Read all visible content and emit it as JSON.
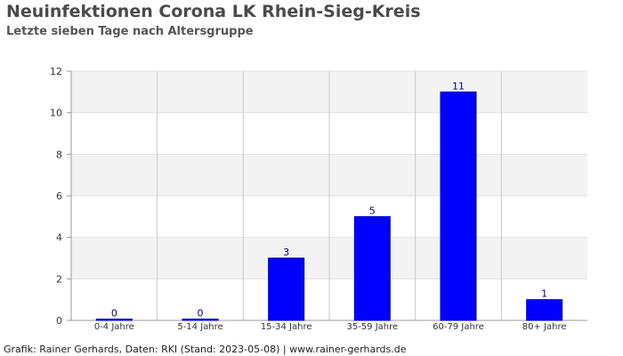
{
  "title": "Neuinfektionen Corona LK Rhein-Sieg-Kreis",
  "subtitle": "Letzte sieben Tage nach Altersgruppe",
  "footer": "Grafik: Rainer Gerhards, Daten: RKI (Stand: 2023-05-08) | www.rainer-gerhards.de",
  "chart_data": {
    "type": "bar",
    "categories": [
      "0-4 Jahre",
      "5-14 Jahre",
      "15-34 Jahre",
      "35-59 Jahre",
      "60-79 Jahre",
      "80+ Jahre"
    ],
    "values": [
      0,
      0,
      3,
      5,
      11,
      1
    ],
    "ylim": [
      0,
      12
    ],
    "yticks": [
      0,
      2,
      4,
      6,
      8,
      10,
      12
    ],
    "grid": true,
    "bar_color": "#0000ff",
    "bar_edge_color": "#0000aa",
    "band_color": "#f3f3f3"
  }
}
